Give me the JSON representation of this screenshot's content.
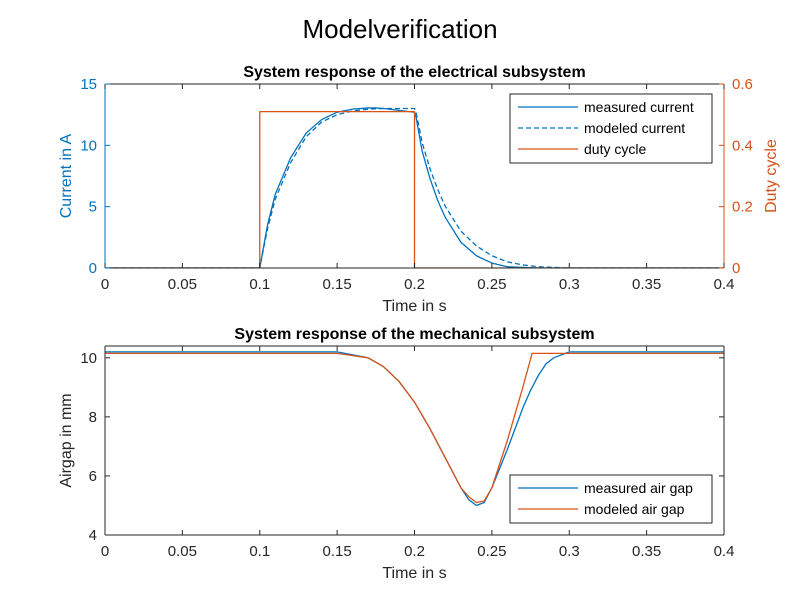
{
  "figure": {
    "title": "Modelverification"
  },
  "chart_data": [
    {
      "type": "line",
      "title": "System response of the electrical subsystem",
      "xlabel": "Time in s",
      "ylabel": "Current in A",
      "y2label": "Duty cycle",
      "xlim": [
        0,
        0.4
      ],
      "ylim": [
        0,
        15
      ],
      "y2lim": [
        0,
        0.6
      ],
      "xticks": [
        "0",
        "0.05",
        "0.1",
        "0.15",
        "0.2",
        "0.25",
        "0.3",
        "0.35",
        "0.4"
      ],
      "yticks": [
        "0",
        "5",
        "10",
        "15"
      ],
      "y2ticks": [
        "0",
        "0.2",
        "0.4",
        "0.6"
      ],
      "grid": false,
      "legend": "top-right",
      "colors": {
        "left_axis": "#0072BD",
        "right_axis": "#D95319"
      },
      "series": [
        {
          "name": "measured current",
          "axis": "left",
          "style": "solid",
          "color": "#0072BD",
          "x": [
            0,
            0.1,
            0.105,
            0.11,
            0.12,
            0.13,
            0.14,
            0.15,
            0.16,
            0.17,
            0.175,
            0.18,
            0.19,
            0.2,
            0.201,
            0.205,
            0.21,
            0.215,
            0.22,
            0.23,
            0.24,
            0.25,
            0.26,
            0.28,
            0.3,
            0.4
          ],
          "y": [
            0,
            0,
            3.5,
            6.0,
            9.0,
            11.0,
            12.1,
            12.7,
            12.95,
            13.05,
            13.05,
            13.0,
            12.85,
            12.7,
            12.3,
            9.5,
            7.3,
            5.5,
            4.1,
            2.1,
            1.0,
            0.4,
            0.1,
            0,
            0,
            0
          ]
        },
        {
          "name": "modeled current",
          "axis": "left",
          "style": "dashed",
          "color": "#0072BD",
          "x": [
            0,
            0.1,
            0.105,
            0.11,
            0.12,
            0.13,
            0.14,
            0.15,
            0.16,
            0.17,
            0.18,
            0.19,
            0.2,
            0.201,
            0.205,
            0.21,
            0.215,
            0.22,
            0.23,
            0.24,
            0.25,
            0.26,
            0.27,
            0.28,
            0.3,
            0.4
          ],
          "y": [
            0,
            0,
            3.2,
            5.6,
            8.6,
            10.7,
            11.9,
            12.5,
            12.8,
            12.95,
            13.0,
            13.0,
            13.0,
            12.7,
            10.2,
            8.1,
            6.4,
            5.0,
            3.0,
            1.8,
            1.0,
            0.5,
            0.25,
            0.1,
            0,
            0
          ]
        },
        {
          "name": "duty cycle",
          "axis": "right",
          "style": "solid",
          "color": "#D95319",
          "x": [
            0,
            0.1,
            0.1,
            0.2,
            0.2,
            0.4
          ],
          "y": [
            0,
            0,
            0.51,
            0.51,
            0,
            0
          ]
        }
      ]
    },
    {
      "type": "line",
      "title": "System response of the mechanical subsystem",
      "xlabel": "Time in s",
      "ylabel": "Airgap in mm",
      "xlim": [
        0,
        0.4
      ],
      "ylim": [
        4,
        10.4
      ],
      "xticks": [
        "0",
        "0.05",
        "0.1",
        "0.15",
        "0.2",
        "0.25",
        "0.3",
        "0.35",
        "0.4"
      ],
      "yticks": [
        "4",
        "6",
        "8",
        "10"
      ],
      "grid": false,
      "legend": "bottom-right",
      "series": [
        {
          "name": "measured air gap",
          "style": "solid",
          "color": "#0072BD",
          "x": [
            0,
            0.15,
            0.17,
            0.18,
            0.19,
            0.2,
            0.21,
            0.22,
            0.23,
            0.235,
            0.24,
            0.245,
            0.25,
            0.26,
            0.27,
            0.275,
            0.28,
            0.285,
            0.29,
            0.3,
            0.4
          ],
          "y": [
            10.2,
            10.2,
            10.0,
            9.7,
            9.2,
            8.5,
            7.6,
            6.6,
            5.6,
            5.2,
            5.0,
            5.1,
            5.6,
            6.9,
            8.3,
            8.9,
            9.4,
            9.8,
            10.0,
            10.2,
            10.2
          ]
        },
        {
          "name": "modeled air gap",
          "style": "solid",
          "color": "#D95319",
          "x": [
            0,
            0.15,
            0.17,
            0.18,
            0.19,
            0.2,
            0.21,
            0.22,
            0.23,
            0.235,
            0.24,
            0.245,
            0.25,
            0.26,
            0.27,
            0.276,
            0.4
          ],
          "y": [
            10.15,
            10.15,
            10.0,
            9.7,
            9.2,
            8.5,
            7.6,
            6.6,
            5.6,
            5.3,
            5.1,
            5.15,
            5.6,
            7.2,
            9.0,
            10.15,
            10.15
          ]
        }
      ]
    }
  ]
}
